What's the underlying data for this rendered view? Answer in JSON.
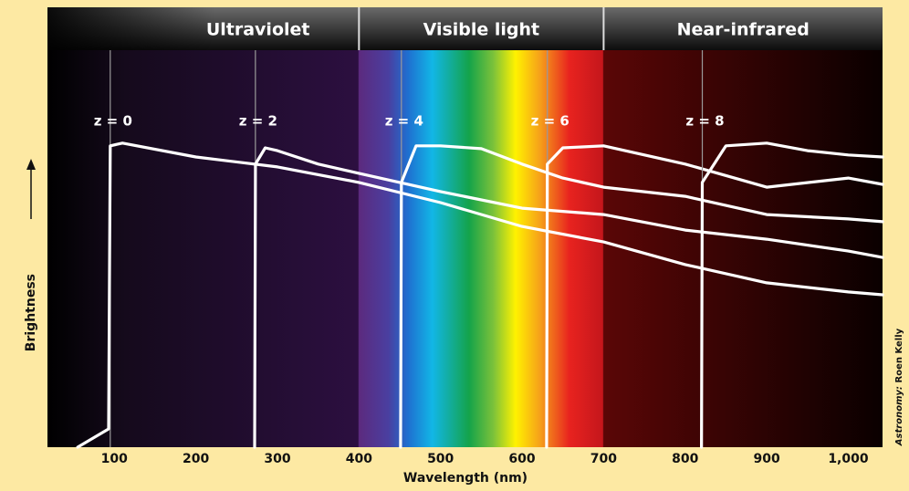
{
  "chart_data": {
    "type": "line",
    "bands": [
      "Ultraviolet",
      "Visible light",
      "Near-infrared"
    ],
    "band_edges": [
      400,
      700
    ],
    "xlabel": "Wavelength (nm)",
    "ylabel": "Brightness",
    "credit": {
      "source": "Astronomy:",
      "author": "Roen Kelly"
    },
    "xlim": [
      18,
      1042
    ],
    "ylim": [
      0,
      100
    ],
    "xticks": [
      100,
      200,
      300,
      400,
      500,
      600,
      700,
      800,
      900,
      {
        "value": 1000,
        "label": "1,000"
      }
    ],
    "series": [
      {
        "name": "z = 0",
        "color": "#ffffff",
        "break": 95,
        "x": [
          55,
          93,
          95,
          110,
          200,
          300,
          400,
          500,
          600,
          700,
          800,
          900,
          1000,
          1042
        ],
        "values": [
          0,
          4.6,
          75.9,
          76.6,
          73.1,
          70.6,
          66.7,
          61.6,
          55.6,
          51.7,
          46.0,
          41.4,
          39.1,
          38.4
        ]
      },
      {
        "name": "z = 2",
        "color": "#ffffff",
        "break": 273,
        "x": [
          272,
          273,
          285,
          300,
          350,
          400,
          500,
          600,
          700,
          800,
          900,
          1000,
          1042
        ],
        "values": [
          0,
          71.3,
          75.4,
          74.7,
          71.3,
          69.0,
          64.4,
          60.2,
          58.6,
          54.7,
          52.4,
          49.4,
          47.8
        ]
      },
      {
        "name": "z = 4",
        "color": "#ffffff",
        "break": 452,
        "x": [
          451,
          452,
          470,
          500,
          550,
          600,
          650,
          700,
          800,
          900,
          1000,
          1042
        ],
        "values": [
          0,
          66.7,
          75.9,
          75.9,
          75.2,
          71.3,
          67.8,
          65.5,
          63.2,
          58.6,
          57.5,
          56.8
        ]
      },
      {
        "name": "z = 6",
        "color": "#ffffff",
        "break": 631,
        "x": [
          630,
          631,
          650,
          700,
          750,
          800,
          900,
          1000,
          1042
        ],
        "values": [
          0,
          71.3,
          75.4,
          75.9,
          73.6,
          71.3,
          65.5,
          67.8,
          66.2
        ]
      },
      {
        "name": "z = 8",
        "color": "#ffffff",
        "break": 821,
        "x": [
          820,
          821,
          850,
          900,
          950,
          1000,
          1042
        ],
        "values": [
          0,
          66.7,
          75.9,
          76.6,
          74.7,
          73.6,
          73.1
        ]
      }
    ]
  }
}
